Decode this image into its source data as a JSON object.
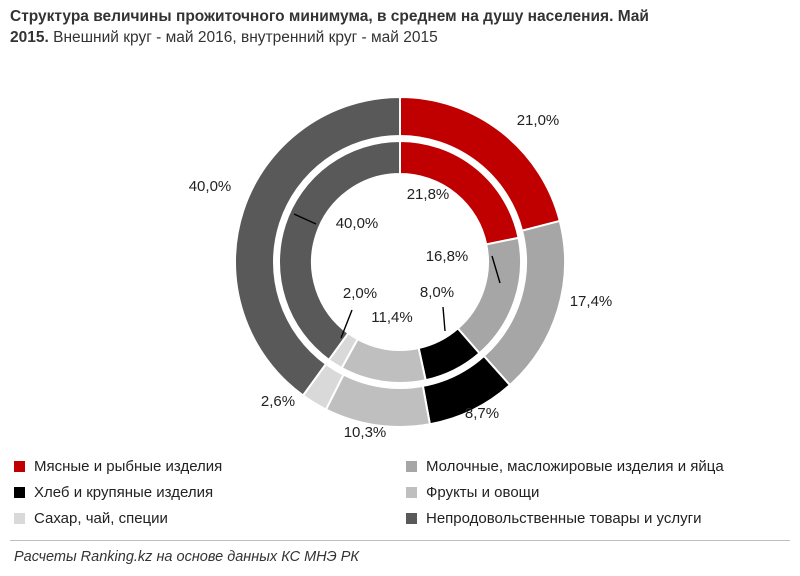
{
  "chart_data": {
    "type": "pie",
    "title": "Структура величины прожиточного минимума, в среднем на душу населения. Май 2015.",
    "subtitle": "Внешний круг - май 2016, внутренний круг - май 2015",
    "categories": [
      "Мясные и рыбные изделия",
      "Молочные, масложировые изделия и яйца",
      "Хлеб и крупяные изделия",
      "Фрукты и овощи",
      "Сахар, чай, специи",
      "Непродовольственные товары и услуги"
    ],
    "series": [
      {
        "name": "май 2016",
        "ring": "outer",
        "values": [
          21.0,
          17.4,
          8.7,
          10.3,
          2.6,
          40.0
        ],
        "labels": [
          "21,0%",
          "17,4%",
          "8,7%",
          "10,3%",
          "2,6%",
          "40,0%"
        ]
      },
      {
        "name": "май 2015",
        "ring": "inner",
        "values": [
          21.8,
          16.8,
          8.0,
          11.4,
          2.0,
          40.0
        ],
        "labels": [
          "21,8%",
          "16,8%",
          "8,0%",
          "11,4%",
          "2,0%",
          "40,0%"
        ]
      }
    ],
    "colors": [
      "#c00000",
      "#a6a6a6",
      "#000000",
      "#bfbfbf",
      "#d9d9d9",
      "#595959"
    ],
    "legend_position": "bottom",
    "unit": "%"
  },
  "header": {
    "title_bold": "Структура величины прожиточного минимума, в среднем на душу населения. Май 2015.",
    "title_rest": " Внешний круг - май 2016, внутренний круг - май 2015"
  },
  "legend": {
    "items": [
      "Мясные и рыбные изделия",
      "Молочные, масложировые изделия и яйца",
      "Хлеб и крупяные изделия",
      "Фрукты и овощи",
      "Сахар, чай, специи",
      "Непродовольственные товары и услуги"
    ]
  },
  "footer": {
    "source": "Расчеты Ranking.kz на основе данных КС МНЭ РК"
  }
}
